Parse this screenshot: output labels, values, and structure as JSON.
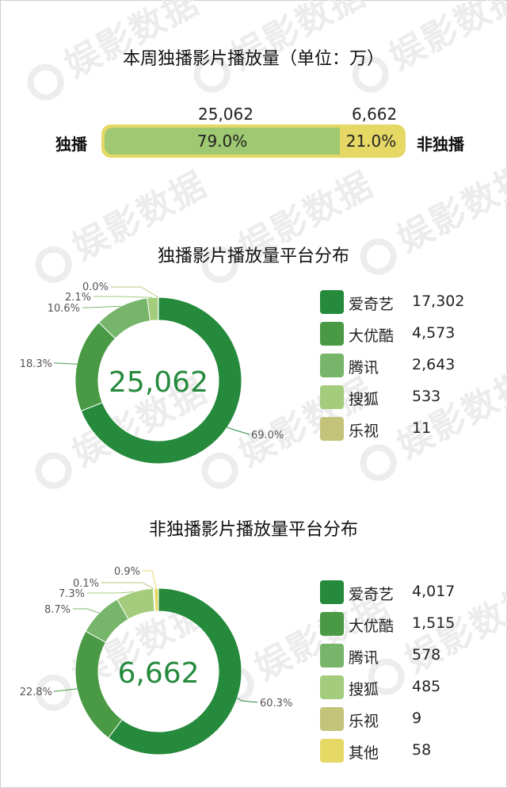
{
  "watermark": "娱影数据",
  "chart_data": [
    {
      "type": "bar",
      "title": "本周独播影片播放量（单位：万）",
      "left_label": "独播",
      "right_label": "非独播",
      "categories": [
        "独播",
        "非独播"
      ],
      "values": [
        25062,
        6662
      ],
      "value_labels": [
        "25,062",
        "6,662"
      ],
      "percent_labels": [
        "79.0%",
        "21.0%"
      ],
      "percents": [
        79.0,
        21.0
      ],
      "colors": [
        "#9ec872",
        "#e5d865"
      ]
    },
    {
      "type": "pie",
      "title": "独播影片播放量平台分布",
      "center_label": "25,062",
      "slices": [
        {
          "name": "爱奇艺",
          "value": 17302,
          "value_label": "17,302",
          "percent": 69.0,
          "percent_label": "69.0%",
          "color": "#258a3c"
        },
        {
          "name": "大优酷",
          "value": 4573,
          "value_label": "4,573",
          "percent": 18.3,
          "percent_label": "18.3%",
          "color": "#4a9a45"
        },
        {
          "name": "腾讯",
          "value": 2643,
          "value_label": "2,643",
          "percent": 10.6,
          "percent_label": "10.6%",
          "color": "#76b56a"
        },
        {
          "name": "搜狐",
          "value": 533,
          "value_label": "533",
          "percent": 2.1,
          "percent_label": "2.1%",
          "color": "#a3cc7d"
        },
        {
          "name": "乐视",
          "value": 11,
          "value_label": "11",
          "percent": 0.0,
          "percent_label": "0.0%",
          "color": "#c3c47a"
        }
      ]
    },
    {
      "type": "pie",
      "title": "非独播影片播放量平台分布",
      "center_label": "6,662",
      "slices": [
        {
          "name": "爱奇艺",
          "value": 4017,
          "value_label": "4,017",
          "percent": 60.3,
          "percent_label": "60.3%",
          "color": "#258a3c"
        },
        {
          "name": "大优酷",
          "value": 1515,
          "value_label": "1,515",
          "percent": 22.8,
          "percent_label": "22.8%",
          "color": "#4a9a45"
        },
        {
          "name": "腾讯",
          "value": 578,
          "value_label": "578",
          "percent": 8.7,
          "percent_label": "8.7%",
          "color": "#76b56a"
        },
        {
          "name": "搜狐",
          "value": 485,
          "value_label": "485",
          "percent": 7.3,
          "percent_label": "7.3%",
          "color": "#a3cc7d"
        },
        {
          "name": "乐视",
          "value": 9,
          "value_label": "9",
          "percent": 0.1,
          "percent_label": "0.1%",
          "color": "#c3c47a"
        },
        {
          "name": "其他",
          "value": 58,
          "value_label": "58",
          "percent": 0.9,
          "percent_label": "0.9%",
          "color": "#e5d865"
        }
      ]
    }
  ]
}
